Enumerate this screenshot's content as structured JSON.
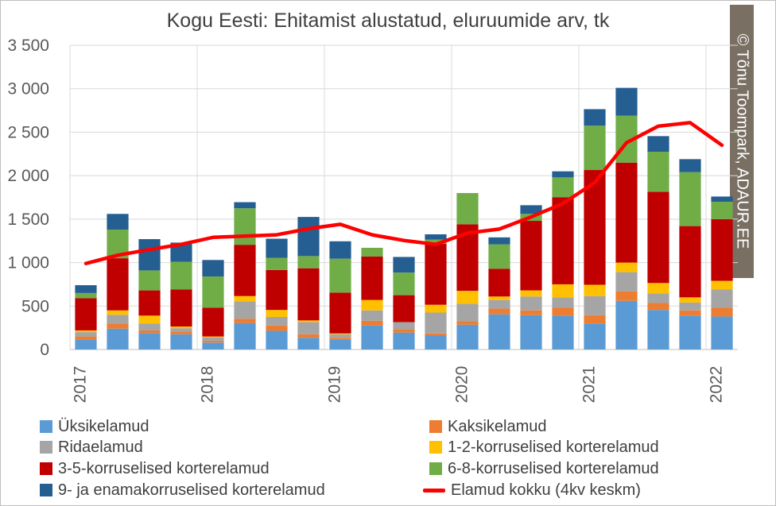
{
  "copyright": "© Tõnu Toompark, ADAUR.EE",
  "chart_data": {
    "type": "bar",
    "stacked": true,
    "title": "Kogu Eesti: Ehitamist alustatud, eluruumide arv, tk",
    "ylim": [
      0,
      3500
    ],
    "yticks": [
      0,
      500,
      1000,
      1500,
      2000,
      2500,
      3000,
      3500
    ],
    "ytick_labels": [
      "0",
      "500",
      "1 000",
      "1 500",
      "2 000",
      "2 500",
      "3 000",
      "3 500"
    ],
    "year_labels": [
      "2017",
      "2018",
      "2019",
      "2020",
      "2021",
      "2022"
    ],
    "grid": true,
    "legend_position": "bottom",
    "categories": [
      "2017 Q1",
      "2017 Q2",
      "2017 Q3",
      "2017 Q4",
      "2018 Q1",
      "2018 Q2",
      "2018 Q3",
      "2018 Q4",
      "2019 Q1",
      "2019 Q2",
      "2019 Q3",
      "2019 Q4",
      "2020 Q1",
      "2020 Q2",
      "2020 Q3",
      "2020 Q4",
      "2021 Q1",
      "2021 Q2",
      "2021 Q3",
      "2021 Q4",
      "2022 Q1"
    ],
    "series": [
      {
        "name": "Üksikelamud",
        "color": "#5b9bd5",
        "values": [
          110,
          240,
          190,
          175,
          80,
          305,
          215,
          135,
          115,
          275,
          195,
          160,
          285,
          405,
          395,
          390,
          300,
          560,
          455,
          390,
          380
        ]
      },
      {
        "name": "Kaksikelamud",
        "color": "#ed7d31",
        "values": [
          40,
          60,
          30,
          30,
          20,
          50,
          60,
          40,
          20,
          55,
          40,
          25,
          40,
          65,
          55,
          90,
          95,
          110,
          80,
          60,
          100
        ]
      },
      {
        "name": "Ridaelamud",
        "color": "#a5a5a5",
        "values": [
          50,
          100,
          80,
          40,
          40,
          200,
          100,
          140,
          40,
          120,
          80,
          240,
          200,
          100,
          160,
          120,
          220,
          220,
          110,
          90,
          210
        ]
      },
      {
        "name": "1-2-korruselised korterelamud",
        "color": "#ffc000",
        "values": [
          20,
          50,
          90,
          20,
          10,
          60,
          80,
          20,
          10,
          120,
          0,
          90,
          150,
          40,
          70,
          150,
          130,
          110,
          120,
          60,
          100
        ]
      },
      {
        "name": "3-5-korruselised korterelamud",
        "color": "#c00000",
        "values": [
          370,
          600,
          290,
          425,
          330,
          590,
          460,
          600,
          470,
          500,
          310,
          700,
          765,
          320,
          800,
          1000,
          1320,
          1150,
          1050,
          820,
          710
        ]
      },
      {
        "name": "6-8-korruselised korterelamud",
        "color": "#70ad47",
        "values": [
          60,
          330,
          230,
          320,
          360,
          420,
          140,
          140,
          390,
          100,
          260,
          50,
          360,
          280,
          80,
          230,
          510,
          540,
          460,
          620,
          200
        ]
      },
      {
        "name": "9- ja enamakorruselised korterelamud",
        "color": "#255e91",
        "values": [
          90,
          180,
          360,
          220,
          190,
          70,
          220,
          450,
          200,
          0,
          180,
          60,
          0,
          80,
          100,
          70,
          190,
          320,
          180,
          150,
          60
        ]
      }
    ],
    "line_series": {
      "name": "Elamud kokku (4kv keskm)",
      "color": "#ff0000",
      "values": [
        990,
        1085,
        1150,
        1210,
        1290,
        1305,
        1320,
        1390,
        1440,
        1320,
        1255,
        1210,
        1340,
        1385,
        1525,
        1680,
        1920,
        2380,
        2570,
        2610,
        2350
      ]
    }
  }
}
